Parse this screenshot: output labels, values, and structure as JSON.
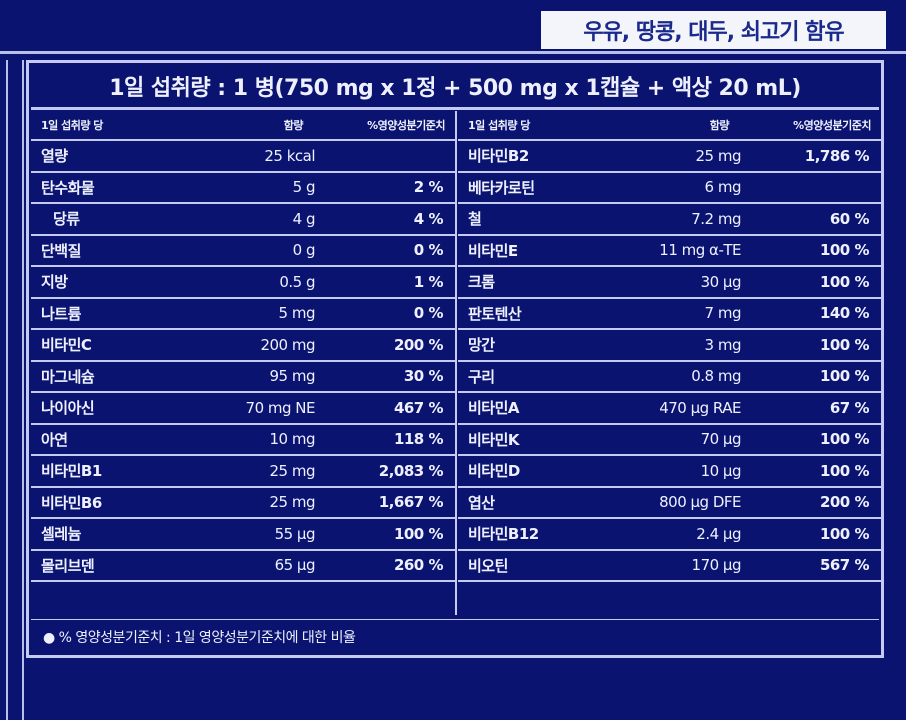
{
  "allergen_notice": "우유, 땅콩, 대두, 쇠고기 함유",
  "serving_title": "1일 섭취량 : 1 병(750 mg x 1정 + 500 mg x 1캡슐 + 액상 20 mL)",
  "headers": {
    "name": "1일 섭취량 당",
    "amount": "함량",
    "percent": "%영양성분기준치"
  },
  "left_rows": [
    {
      "name": "열량",
      "amount": "25 kcal",
      "percent": ""
    },
    {
      "name": "탄수화물",
      "amount": "5 g",
      "percent": "2 %"
    },
    {
      "name": "당류",
      "amount": "4 g",
      "percent": "4 %"
    },
    {
      "name": "단백질",
      "amount": "0 g",
      "percent": "0 %"
    },
    {
      "name": "지방",
      "amount": "0.5 g",
      "percent": "1 %"
    },
    {
      "name": "나트륨",
      "amount": "5 mg",
      "percent": "0 %"
    },
    {
      "name": "비타민C",
      "amount": "200 mg",
      "percent": "200 %"
    },
    {
      "name": "마그네슘",
      "amount": "95 mg",
      "percent": "30 %"
    },
    {
      "name": "나이아신",
      "amount": "70 mg NE",
      "percent": "467 %"
    },
    {
      "name": "아연",
      "amount": "10 mg",
      "percent": "118 %"
    },
    {
      "name": "비타민B1",
      "amount": "25 mg",
      "percent": "2,083 %"
    },
    {
      "name": "비타민B6",
      "amount": "25 mg",
      "percent": "1,667 %"
    },
    {
      "name": "셀레늄",
      "amount": "55 μg",
      "percent": "100 %"
    },
    {
      "name": "몰리브덴",
      "amount": "65 μg",
      "percent": "260 %"
    }
  ],
  "right_rows": [
    {
      "name": "비타민B2",
      "amount": "25 mg",
      "percent": "1,786 %"
    },
    {
      "name": "베타카로틴",
      "amount": "6 mg",
      "percent": ""
    },
    {
      "name": "철",
      "amount": "7.2 mg",
      "percent": "60 %"
    },
    {
      "name": "비타민E",
      "amount": "11 mg α-TE",
      "percent": "100 %"
    },
    {
      "name": "크롬",
      "amount": "30 μg",
      "percent": "100 %"
    },
    {
      "name": "판토텐산",
      "amount": "7 mg",
      "percent": "140 %"
    },
    {
      "name": "망간",
      "amount": "3 mg",
      "percent": "100 %"
    },
    {
      "name": "구리",
      "amount": "0.8 mg",
      "percent": "100 %"
    },
    {
      "name": "비타민A",
      "amount": "470 μg RAE",
      "percent": "67 %"
    },
    {
      "name": "비타민K",
      "amount": "70 μg",
      "percent": "100 %"
    },
    {
      "name": "비타민D",
      "amount": "10 μg",
      "percent": "100 %"
    },
    {
      "name": "엽산",
      "amount": "800 μg DFE",
      "percent": "200 %"
    },
    {
      "name": "비타민B12",
      "amount": "2.4 μg",
      "percent": "100 %"
    },
    {
      "name": "비오틴",
      "amount": "170 μg",
      "percent": "567 %"
    }
  ],
  "footnote": "● % 영양성분기준치 : 1일 영양성분기준치에 대한 비율",
  "colors": {
    "background": "#0a1470",
    "border": "#c4caf0",
    "allergen_box": "#f4f5fb",
    "allergen_text": "#1a2a8c"
  }
}
